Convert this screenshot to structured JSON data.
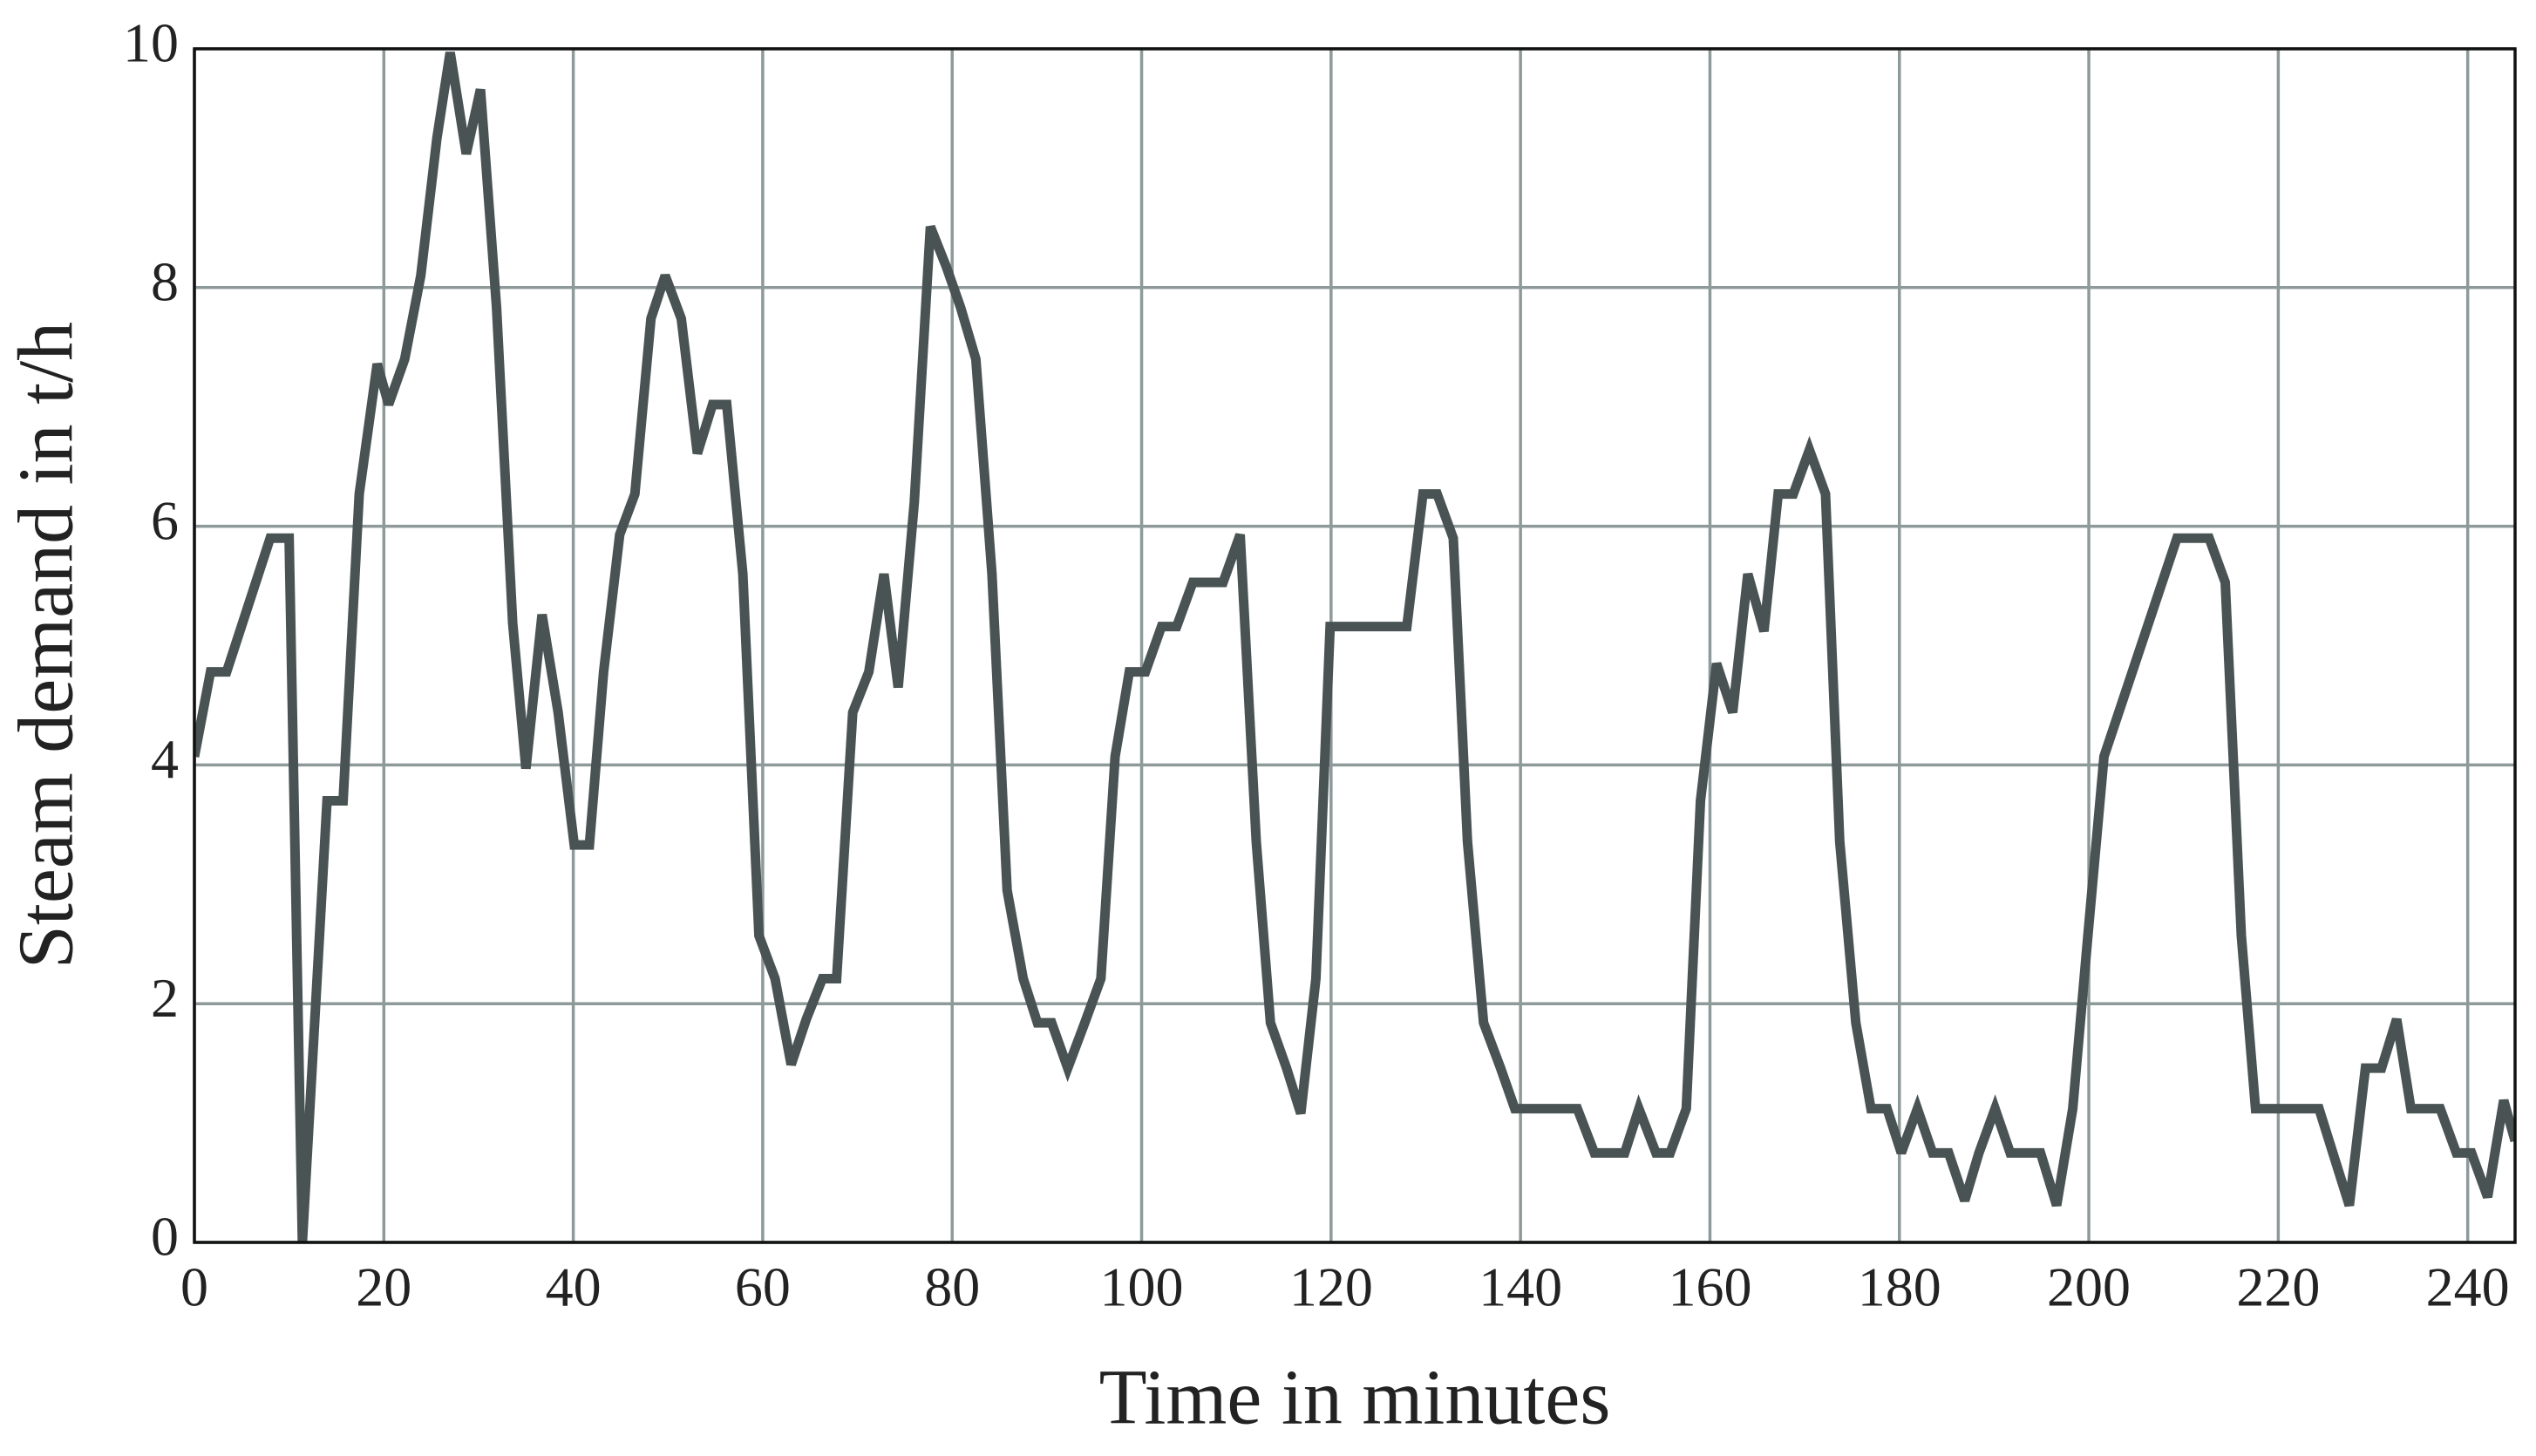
{
  "chart_data": {
    "type": "line",
    "xlabel": "Time in minutes",
    "ylabel": "Steam demand in t/h",
    "x": [
      0,
      1.7,
      3.4,
      8,
      10,
      11.4,
      14,
      15.7,
      17.4,
      19.3,
      20.5,
      22.2,
      23.9,
      25.6,
      27,
      28.7,
      30.2,
      31.9,
      33.6,
      35,
      36.7,
      38.4,
      40.1,
      41.7,
      43.2,
      44.9,
      46.5,
      48.2,
      49.7,
      51.4,
      53.1,
      54.7,
      56.2,
      57.9,
      59.6,
      61.3,
      63,
      64.6,
      66.3,
      67.8,
      69.5,
      71.2,
      72.8,
      74.3,
      76,
      77.7,
      79.4,
      80.9,
      82.5,
      84.2,
      85.8,
      87.5,
      89,
      90.5,
      92.2,
      94,
      95.7,
      97.2,
      98.7,
      100.4,
      102.1,
      103.7,
      105.4,
      107.1,
      108.6,
      110.4,
      112.1,
      113.6,
      115.3,
      116.8,
      118.4,
      119.9,
      128,
      129.7,
      131.2,
      132.9,
      134.4,
      136.1,
      137.9,
      139.4,
      146,
      147.8,
      151,
      152.5,
      154.3,
      155.8,
      157.5,
      159,
      160.7,
      162.4,
      164,
      165.7,
      167.2,
      168.8,
      170.5,
      172.2,
      173.7,
      175.4,
      177,
      178.7,
      180.2,
      181.9,
      183.5,
      185.2,
      186.9,
      188.4,
      190.1,
      191.7,
      194.9,
      196.6,
      198.3,
      199.9,
      201.6,
      209.3,
      212.7,
      214.4,
      216.1,
      217.6,
      224.3,
      227.5,
      229.2,
      230.9,
      232.5,
      234,
      237.1,
      238.8,
      240.4,
      242.1,
      243.8,
      245
    ],
    "values": [
      4.07,
      4.78,
      4.78,
      5.9,
      5.9,
      0,
      3.7,
      3.7,
      6.27,
      7.36,
      7.02,
      7.4,
      8.1,
      9.25,
      9.97,
      9.12,
      9.66,
      7.83,
      5.19,
      3.97,
      5.26,
      4.44,
      3.33,
      3.33,
      4.78,
      5.93,
      6.27,
      7.74,
      8.1,
      7.74,
      6.61,
      7.02,
      7.02,
      5.6,
      2.57,
      2.21,
      1.49,
      1.87,
      2.21,
      2.21,
      4.44,
      4.78,
      5.6,
      4.65,
      6.2,
      8.51,
      8.17,
      7.83,
      7.4,
      5.6,
      2.95,
      2.21,
      1.84,
      1.84,
      1.46,
      1.84,
      2.21,
      4.07,
      4.78,
      4.78,
      5.16,
      5.16,
      5.53,
      5.53,
      5.53,
      5.93,
      3.36,
      1.84,
      1.46,
      1.08,
      2.21,
      5.16,
      5.16,
      6.27,
      6.27,
      5.9,
      3.36,
      1.84,
      1.46,
      1.12,
      1.12,
      0.75,
      0.75,
      1.12,
      0.75,
      0.75,
      1.12,
      3.7,
      4.85,
      4.44,
      5.6,
      5.12,
      6.27,
      6.27,
      6.64,
      6.27,
      3.36,
      1.84,
      1.12,
      1.12,
      0.75,
      1.12,
      0.75,
      0.75,
      0.35,
      0.75,
      1.12,
      0.75,
      0.75,
      0.31,
      1.12,
      2.57,
      4.07,
      5.9,
      5.9,
      5.53,
      2.57,
      1.12,
      1.12,
      0.31,
      1.46,
      1.46,
      1.87,
      1.12,
      1.12,
      0.75,
      0.75,
      0.38,
      1.19,
      0.85
    ],
    "color": "#4a5353",
    "xlim": [
      0,
      245
    ],
    "xticks": [
      0,
      20,
      40,
      60,
      80,
      100,
      120,
      140,
      160,
      180,
      200,
      220,
      240
    ],
    "ylim": [
      0,
      10
    ],
    "yticks": [
      0,
      2,
      4,
      6,
      8,
      10
    ],
    "grid": true
  }
}
